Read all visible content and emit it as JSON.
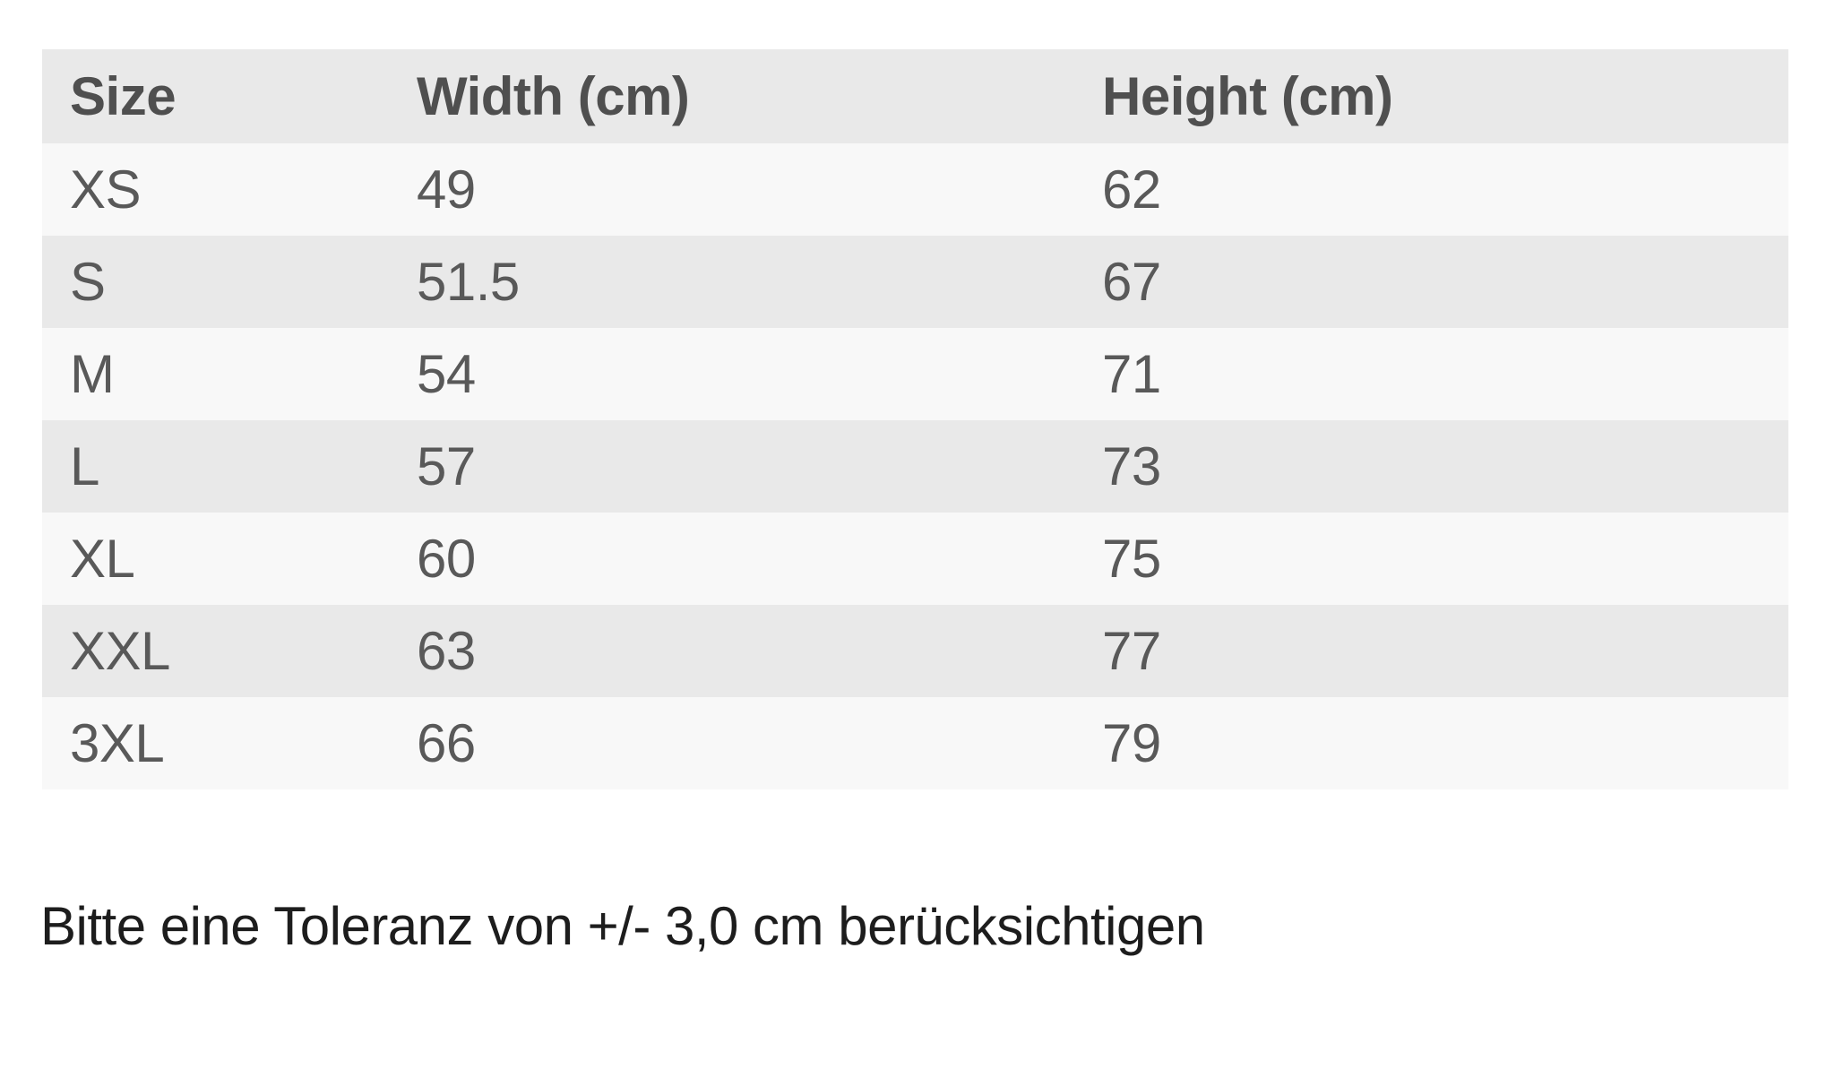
{
  "size_chart": {
    "columns": [
      {
        "label": "Size"
      },
      {
        "label": "Width (cm)"
      },
      {
        "label": "Height (cm)"
      }
    ],
    "rows": [
      {
        "size": "XS",
        "width_cm": "49",
        "height_cm": "62"
      },
      {
        "size": "S",
        "width_cm": "51.5",
        "height_cm": "67"
      },
      {
        "size": "M",
        "width_cm": "54",
        "height_cm": "71"
      },
      {
        "size": "L",
        "width_cm": "57",
        "height_cm": "73"
      },
      {
        "size": "XL",
        "width_cm": "60",
        "height_cm": "75"
      },
      {
        "size": "XXL",
        "width_cm": "63",
        "height_cm": "77"
      },
      {
        "size": "3XL",
        "width_cm": "66",
        "height_cm": "79"
      }
    ]
  },
  "note": {
    "text": "Bitte eine Toleranz von +/- 3,0 cm berücksichtigen"
  },
  "colors": {
    "page_bg": "#ffffff",
    "header_row_bg": "#e9e9e9",
    "stripe_odd_bg": "#f8f8f8",
    "stripe_even_bg": "#e9e9e9",
    "header_text": "#4f4f4f",
    "cell_text": "#595959",
    "note_text": "#1d1d1d"
  }
}
